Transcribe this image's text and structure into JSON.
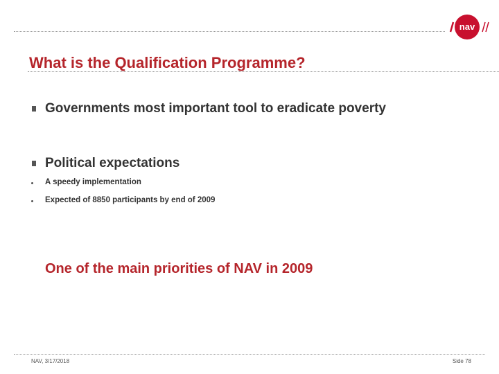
{
  "header": {
    "logo": "nav",
    "title": "What is the Qualification Programme?"
  },
  "body": {
    "bullets": [
      {
        "text": "Governments most important tool to eradicate poverty",
        "subitems": []
      },
      {
        "text": "Political expectations",
        "subitems": [
          "A speedy implementation",
          "Expected of 8850 participants by end of 2009"
        ]
      }
    ],
    "highlight": "One of the main priorities of NAV in 2009"
  },
  "footer": {
    "left": "NAV, 3/17/2018",
    "right": "Side 78"
  }
}
